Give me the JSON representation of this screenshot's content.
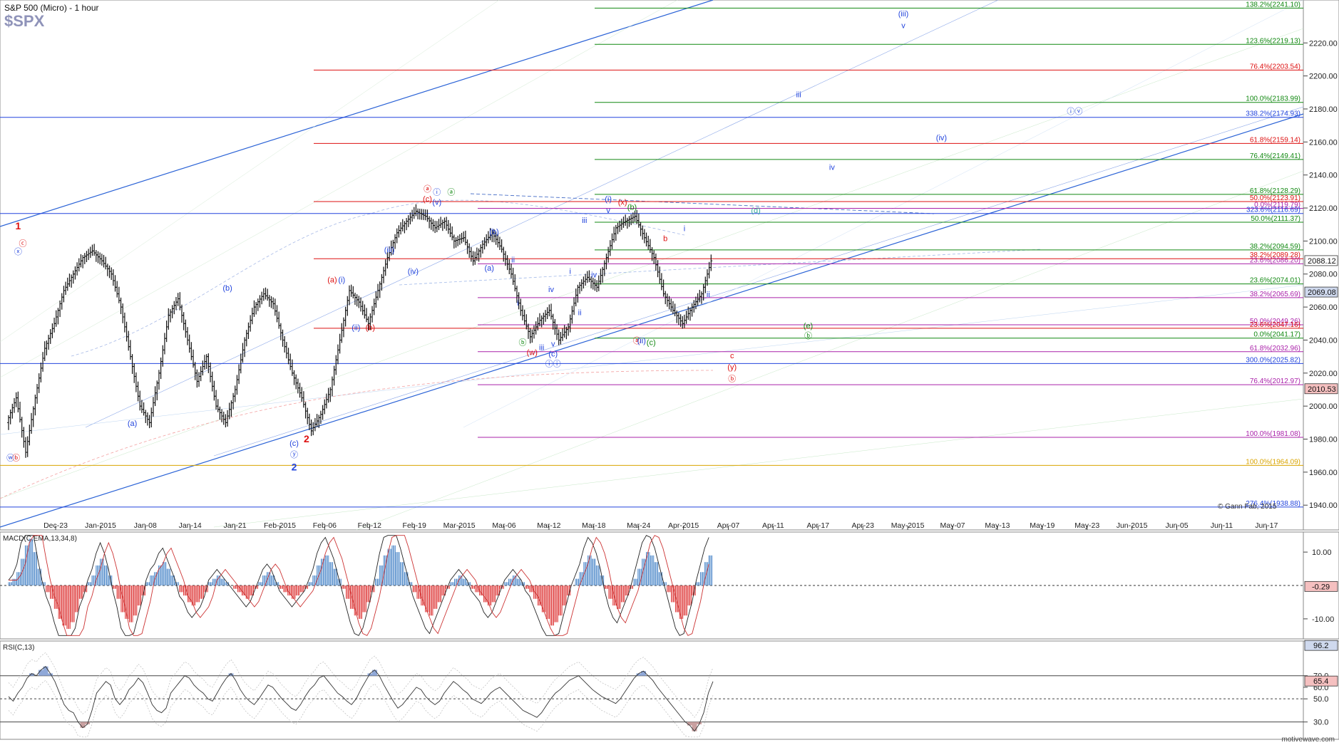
{
  "header": {
    "title": "S&P 500 (Micro) - 1 hour",
    "symbol": "$SPX",
    "copyright": "© Gann Fab, 2015",
    "watermark": "motivewave.com"
  },
  "colors": {
    "price_bars": "#111111",
    "blue_lines": "#2255dd",
    "red_lines": "#dd1111",
    "green_lines": "#118811",
    "purple_lines": "#aa22aa",
    "yellow_line": "#f2c200",
    "macd_positive": "#4a86c8",
    "macd_negative": "#dd3333",
    "rsi_fill": "#c9a0a0",
    "last_price_box": "#ffffff",
    "current_box": "#cfd9ee",
    "red_box": "#f5c0c0"
  },
  "chart_data": [
    {
      "type": "line",
      "title": "S&P 500 (Micro) - 1 hour",
      "subtitle": "$SPX",
      "x_tick_labels": [
        "Dec-23",
        "Jan-2015",
        "Jan-08",
        "Jan-14",
        "Jan-21",
        "Feb-2015",
        "Feb-06",
        "Feb-12",
        "Feb-19",
        "Mar-2015",
        "Mar-06",
        "Mar-12",
        "Mar-18",
        "Mar-24",
        "Apr-2015",
        "Apr-07",
        "Apr-11",
        "Apr-17",
        "Apr-23",
        "May-2015",
        "May-07",
        "May-13",
        "May-19",
        "May-23",
        "Jun-2015",
        "Jun-05",
        "Jun-11",
        "Jun-17"
      ],
      "y_tick_labels": [
        "2220.00",
        "2200.00",
        "2180.00",
        "2160.00",
        "2140.00",
        "2120.00",
        "2100.00",
        "2080.00",
        "2060.00",
        "2040.00",
        "2020.00",
        "2000.00",
        "1980.00",
        "1960.00",
        "1940.00"
      ],
      "y_ticks": [
        2220,
        2200,
        2180,
        2160,
        2140,
        2120,
        2100,
        2080,
        2060,
        2040,
        2020,
        2000,
        1980,
        1960,
        1940
      ],
      "ylim": [
        1925,
        2246
      ],
      "price_path": [
        1990,
        2005,
        1972,
        2005,
        2035,
        2050,
        2070,
        2080,
        2090,
        2094,
        2088,
        2080,
        2060,
        2030,
        2000,
        1990,
        2020,
        2055,
        2065,
        2040,
        2015,
        2030,
        2000,
        1990,
        2010,
        2040,
        2060,
        2068,
        2062,
        2040,
        2020,
        2005,
        1985,
        1995,
        2010,
        2040,
        2070,
        2063,
        2050,
        2070,
        2090,
        2105,
        2112,
        2118,
        2115,
        2108,
        2112,
        2100,
        2102,
        2088,
        2098,
        2105,
        2095,
        2080,
        2058,
        2042,
        2052,
        2058,
        2040,
        2048,
        2072,
        2078,
        2072,
        2090,
        2108,
        2112,
        2115,
        2102,
        2090,
        2068,
        2058,
        2050,
        2060,
        2068,
        2088
      ],
      "current_price": "2088.12",
      "fib_levels": [
        {
          "label": "138.2%(2241.10)",
          "value": 2241.1,
          "color": "#118811"
        },
        {
          "label": "123.6%(2219.13)",
          "value": 2219.13,
          "color": "#118811"
        },
        {
          "label": "76.4%(2203.54)",
          "value": 2203.54,
          "color": "#dd1111"
        },
        {
          "label": "100.0%(2183.99)",
          "value": 2183.99,
          "color": "#118811"
        },
        {
          "label": "338.2%(2174.93)",
          "value": 2174.93,
          "color": "#2244dd"
        },
        {
          "label": "61.8%(2159.14)",
          "value": 2159.14,
          "color": "#dd1111"
        },
        {
          "label": "76.4%(2149.41)",
          "value": 2149.41,
          "color": "#118811"
        },
        {
          "label": "61.8%(2128.29)",
          "value": 2128.29,
          "color": "#118811"
        },
        {
          "label": "50.0%(2123.91)",
          "value": 2123.91,
          "color": "#dd1111"
        },
        {
          "label": "0.0%(2119.79)",
          "value": 2119.79,
          "color": "#aa22aa"
        },
        {
          "label": "323.6%(2116.69)",
          "value": 2116.69,
          "color": "#2244dd"
        },
        {
          "label": "50.0%(2111.37)",
          "value": 2111.37,
          "color": "#118811"
        },
        {
          "label": "38.2%(2094.59)",
          "value": 2094.59,
          "color": "#118811"
        },
        {
          "label": "38.2%(2089.28)",
          "value": 2089.28,
          "color": "#dd1111"
        },
        {
          "label": "23.6%(2086.20)",
          "value": 2086.2,
          "color": "#aa22aa"
        },
        {
          "label": "23.6%(2074.01)",
          "value": 2074.01,
          "color": "#118811"
        },
        {
          "label": "38.2%(2065.69)",
          "value": 2065.69,
          "color": "#aa22aa"
        },
        {
          "label": "50.0%(2049.26)",
          "value": 2049.26,
          "color": "#aa22aa"
        },
        {
          "label": "23.6%(2047.16)",
          "value": 2047.16,
          "color": "#dd1111"
        },
        {
          "label": "0.0%(2041.17)",
          "value": 2041.17,
          "color": "#118811"
        },
        {
          "label": "61.8%(2032.96)",
          "value": 2032.96,
          "color": "#aa22aa"
        },
        {
          "label": "300.0%(2025.82)",
          "value": 2025.82,
          "color": "#2244dd"
        },
        {
          "label": "76.4%(2012.97)",
          "value": 2012.97,
          "color": "#aa22aa"
        },
        {
          "label": "100.0%(1981.08)",
          "value": 1981.08,
          "color": "#aa22aa"
        },
        {
          "label": "100.0%(1964.09)",
          "value": 1964.09,
          "color": "#d9a400"
        },
        {
          "label": "276.4%(1938.88)",
          "value": 1938.88,
          "color": "#2244dd"
        }
      ],
      "axis_boxes": [
        {
          "label": "2088.12",
          "value": 2088.12,
          "style": "plain"
        },
        {
          "label": "2069.08",
          "value": 2069.08,
          "style": "blue"
        },
        {
          "label": "2010.53",
          "value": 2010.53,
          "style": "red"
        }
      ],
      "wave_labels": [
        {
          "t": "1",
          "x": 1,
          "v": 2107,
          "c": "#dd1111"
        },
        {
          "t": "ⓧ",
          "x": 1,
          "v": 2092,
          "c": "#2244dd"
        },
        {
          "t": "ⓒ",
          "x": 1.5,
          "v": 2097,
          "c": "#dd1111"
        },
        {
          "t": "ⓦ",
          "x": 0.2,
          "v": 1967,
          "c": "#2244dd"
        },
        {
          "t": "ⓑ",
          "x": 0.8,
          "v": 1967,
          "c": "#dd1111"
        },
        {
          "t": "(a)",
          "x": 13,
          "v": 1988,
          "c": "#2244dd"
        },
        {
          "t": "(b)",
          "x": 23,
          "v": 2070,
          "c": "#2244dd"
        },
        {
          "t": "(c)",
          "x": 30,
          "v": 1976,
          "c": "#2244dd"
        },
        {
          "t": "ⓨ",
          "x": 30,
          "v": 1969,
          "c": "#2244dd"
        },
        {
          "t": "2",
          "x": 30,
          "v": 1961,
          "c": "#2244dd"
        },
        {
          "t": "2",
          "x": 31.3,
          "v": 1978,
          "c": "#dd1111"
        },
        {
          "t": "(a)",
          "x": 34,
          "v": 2075,
          "c": "#dd1111"
        },
        {
          "t": "(i)",
          "x": 35,
          "v": 2075,
          "c": "#2244dd"
        },
        {
          "t": "(ii)",
          "x": 36.5,
          "v": 2046,
          "c": "#2244dd"
        },
        {
          "t": "(b)",
          "x": 38,
          "v": 2046,
          "c": "#dd1111"
        },
        {
          "t": "(iii)",
          "x": 40,
          "v": 2093,
          "c": "#2244dd"
        },
        {
          "t": "(iv)",
          "x": 42.5,
          "v": 2080,
          "c": "#2244dd"
        },
        {
          "t": "ⓐ",
          "x": 44,
          "v": 2130,
          "c": "#dd1111"
        },
        {
          "t": "(c)",
          "x": 44,
          "v": 2124,
          "c": "#dd1111"
        },
        {
          "t": "ⓘ",
          "x": 45,
          "v": 2128,
          "c": "#2244dd"
        },
        {
          "t": "ⓐ",
          "x": 46.5,
          "v": 2128,
          "c": "#118811"
        },
        {
          "t": "(v)",
          "x": 45,
          "v": 2122,
          "c": "#2244dd"
        },
        {
          "t": "(b)",
          "x": 51,
          "v": 2104,
          "c": "#2244dd"
        },
        {
          "t": "(a)",
          "x": 50.5,
          "v": 2082,
          "c": "#2244dd"
        },
        {
          "t": "ii",
          "x": 53,
          "v": 2087,
          "c": "#2244dd"
        },
        {
          "t": "i",
          "x": 53.5,
          "v": 2061,
          "c": "#2244dd"
        },
        {
          "t": "ⓑ",
          "x": 54,
          "v": 2037,
          "c": "#118811"
        },
        {
          "t": "(w)",
          "x": 55,
          "v": 2031,
          "c": "#dd1111"
        },
        {
          "t": "iii",
          "x": 56,
          "v": 2034,
          "c": "#2244dd"
        },
        {
          "t": "iv",
          "x": 57,
          "v": 2069,
          "c": "#2244dd"
        },
        {
          "t": "v",
          "x": 57.2,
          "v": 2036,
          "c": "#2244dd"
        },
        {
          "t": "(c)",
          "x": 57.2,
          "v": 2030,
          "c": "#2244dd"
        },
        {
          "t": "ⓘⓘ",
          "x": 57.2,
          "v": 2024,
          "c": "#2244dd"
        },
        {
          "t": "i",
          "x": 59,
          "v": 2080,
          "c": "#2244dd"
        },
        {
          "t": "ii",
          "x": 60,
          "v": 2055,
          "c": "#2244dd"
        },
        {
          "t": "iii",
          "x": 60.5,
          "v": 2111,
          "c": "#2244dd"
        },
        {
          "t": "iv",
          "x": 61.5,
          "v": 2078,
          "c": "#2244dd"
        },
        {
          "t": "(i)",
          "x": 63,
          "v": 2124,
          "c": "#2244dd"
        },
        {
          "t": "v",
          "x": 63,
          "v": 2117,
          "c": "#2244dd"
        },
        {
          "t": "(x)",
          "x": 64.5,
          "v": 2122,
          "c": "#dd1111"
        },
        {
          "t": "(b)",
          "x": 65.5,
          "v": 2119,
          "c": "#118811"
        },
        {
          "t": "ⓐ",
          "x": 66,
          "v": 2038,
          "c": "#dd1111"
        },
        {
          "t": "(ii)",
          "x": 66.5,
          "v": 2038,
          "c": "#2244dd"
        },
        {
          "t": "(c)",
          "x": 67.5,
          "v": 2037,
          "c": "#118811"
        },
        {
          "t": "b",
          "x": 69,
          "v": 2100,
          "c": "#dd1111"
        },
        {
          "t": "i",
          "x": 71,
          "v": 2106,
          "c": "#2244dd"
        },
        {
          "t": "ii",
          "x": 73.5,
          "v": 2066,
          "c": "#2244dd"
        },
        {
          "t": "c",
          "x": 76,
          "v": 2029,
          "c": "#dd1111"
        },
        {
          "t": "(y)",
          "x": 76,
          "v": 2022,
          "c": "#dd1111"
        },
        {
          "t": "ⓑ",
          "x": 76,
          "v": 2015,
          "c": "#dd1111"
        },
        {
          "t": "(d)",
          "x": 78.5,
          "v": 2117,
          "c": "#33aa99"
        },
        {
          "t": "(e)",
          "x": 84,
          "v": 2047,
          "c": "#118811"
        },
        {
          "t": "ⓑ",
          "x": 84,
          "v": 2041,
          "c": "#118811"
        },
        {
          "t": "(iii)",
          "x": 94,
          "v": 2236,
          "c": "#2244dd"
        },
        {
          "t": "v",
          "x": 94,
          "v": 2229,
          "c": "#2244dd"
        },
        {
          "t": "iii",
          "x": 83,
          "v": 2187,
          "c": "#2244dd"
        },
        {
          "t": "(iv)",
          "x": 98,
          "v": 2161,
          "c": "#2244dd"
        },
        {
          "t": "iv",
          "x": 86.5,
          "v": 2143,
          "c": "#2244dd"
        },
        {
          "t": "ⓘⓥ",
          "x": 112,
          "v": 2177,
          "c": "#2244dd"
        }
      ]
    },
    {
      "type": "bar",
      "title": "MACD(C,EMA,13,34,8)",
      "y_tick_labels": [
        "10.00",
        "-10.00"
      ],
      "y_ticks": [
        10,
        -10
      ],
      "ylim": [
        -16,
        16
      ],
      "last_value": "-0.29",
      "histogram": [
        1,
        2,
        4,
        8,
        12,
        14,
        10,
        5,
        1,
        -2,
        -4,
        -7,
        -10,
        -12,
        -13,
        -11,
        -8,
        -4,
        -2,
        1,
        3,
        6,
        8,
        6,
        3,
        -1,
        -4,
        -8,
        -10,
        -11,
        -9,
        -6,
        -3,
        1,
        3,
        4,
        6,
        7,
        5,
        3,
        1,
        -2,
        -3,
        -5,
        -6,
        -5,
        -4,
        -2,
        1,
        2,
        3,
        2,
        1,
        0,
        -1,
        -2,
        -3,
        -4,
        -3,
        -1,
        1,
        3,
        4,
        3,
        1,
        -1,
        -2,
        -3,
        -4,
        -3,
        -2,
        -1,
        1,
        3,
        6,
        8,
        9,
        7,
        5,
        2,
        -1,
        -4,
        -7,
        -9,
        -10,
        -8,
        -5,
        -2,
        2,
        6,
        9,
        11,
        12,
        10,
        7,
        4,
        1,
        -2,
        -4,
        -6,
        -8,
        -9,
        -7,
        -5,
        -3,
        -1,
        1,
        2,
        3,
        2,
        1,
        -1,
        -2,
        -3,
        -5,
        -6,
        -5,
        -3,
        -1,
        1,
        2,
        3,
        2,
        1,
        -1,
        -2,
        -4,
        -6,
        -8,
        -10,
        -12,
        -11,
        -9,
        -6,
        -3,
        0,
        2,
        4,
        7,
        9,
        8,
        6,
        3,
        -1,
        -4,
        -6,
        -7,
        -5,
        -3,
        -1,
        2,
        5,
        8,
        10,
        9,
        7,
        4,
        1,
        -2,
        -5,
        -8,
        -10,
        -9,
        -6,
        -3,
        1,
        4,
        7,
        9
      ]
    },
    {
      "type": "line",
      "title": "RSI(C,13)",
      "y_tick_labels": [
        "70.0",
        "60.0",
        "50.0",
        "30.0"
      ],
      "y_ticks": [
        70,
        60,
        50,
        30
      ],
      "ylim": [
        15,
        100
      ],
      "box_values": [
        "96.2",
        "65.4"
      ],
      "values": [
        52,
        48,
        55,
        60,
        68,
        72,
        70,
        75,
        78,
        72,
        65,
        55,
        45,
        40,
        38,
        30,
        25,
        28,
        40,
        55,
        60,
        65,
        62,
        50,
        45,
        50,
        58,
        62,
        68,
        64,
        55,
        45,
        40,
        38,
        42,
        55,
        60,
        65,
        70,
        68,
        62,
        58,
        55,
        50,
        48,
        55,
        62,
        68,
        72,
        66,
        58,
        52,
        48,
        45,
        50,
        56,
        62,
        60,
        55,
        50,
        46,
        42,
        40,
        45,
        52,
        58,
        62,
        68,
        70,
        65,
        60,
        55,
        52,
        48,
        45,
        50,
        58,
        65,
        72,
        75,
        70,
        62,
        55,
        48,
        42,
        45,
        50,
        55,
        60,
        58,
        52,
        48,
        45,
        48,
        55,
        60,
        65,
        62,
        58,
        55,
        50,
        48,
        46,
        50,
        55,
        58,
        60,
        56,
        52,
        48,
        44,
        40,
        38,
        36,
        34,
        38,
        44,
        50,
        55,
        58,
        62,
        66,
        68,
        70,
        66,
        62,
        58,
        55,
        52,
        50,
        48,
        46,
        50,
        56,
        62,
        68,
        72,
        74,
        70,
        66,
        60,
        55,
        50,
        45,
        40,
        35,
        30,
        27,
        22,
        28,
        38,
        55,
        65
      ]
    }
  ]
}
